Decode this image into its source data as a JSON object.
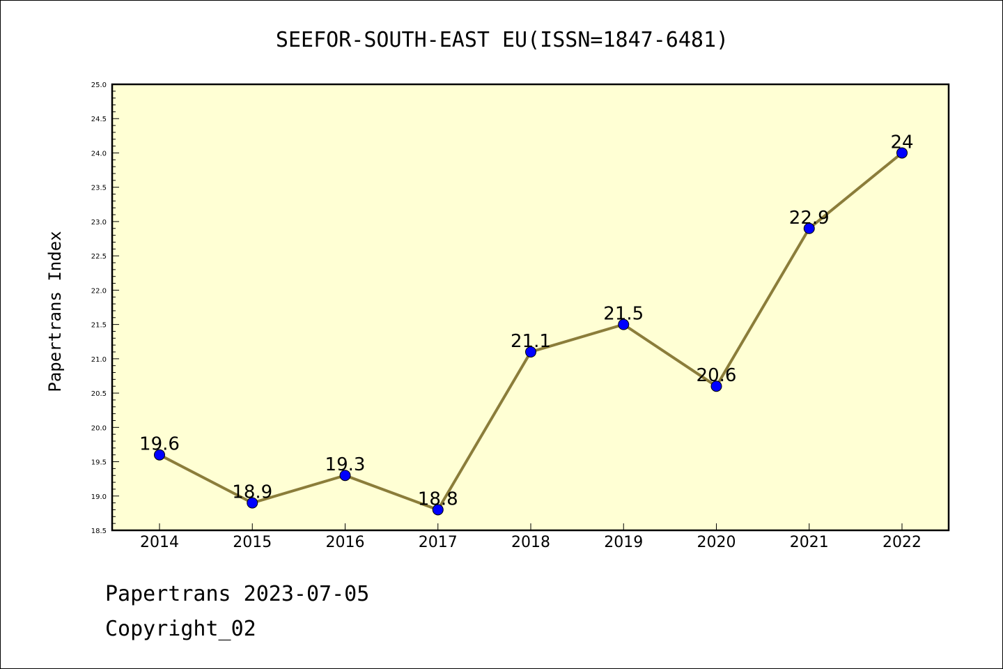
{
  "chart_data": {
    "type": "line",
    "title": "SEEFOR-SOUTH-EAST EU(ISSN=1847-6481)",
    "xlabel": "",
    "ylabel": "Papertrans Index",
    "ylim": [
      18.5,
      25.0
    ],
    "yticks": [
      "18.5",
      "19.0",
      "19.5",
      "20.0",
      "20.5",
      "21.0",
      "21.5",
      "22.0",
      "22.5",
      "23.0",
      "23.5",
      "24.0",
      "24.5",
      "25.0"
    ],
    "categories": [
      "2014",
      "2015",
      "2016",
      "2017",
      "2018",
      "2019",
      "2020",
      "2021",
      "2022"
    ],
    "series": [
      {
        "values": [
          19.6,
          18.9,
          19.3,
          18.8,
          21.1,
          21.5,
          20.6,
          22.9,
          24
        ],
        "labels": [
          "19.6",
          "18.9",
          "19.3",
          "18.8",
          "21.1",
          "21.5",
          "20.6",
          "22.9",
          "24"
        ]
      }
    ],
    "grid": false,
    "background_color": "#ffffd4",
    "line_color": "#8b7d3a",
    "marker_color": "#0000ff"
  },
  "footer": {
    "line1": "Papertrans 2023-07-05",
    "line2": "Copyright_02"
  }
}
